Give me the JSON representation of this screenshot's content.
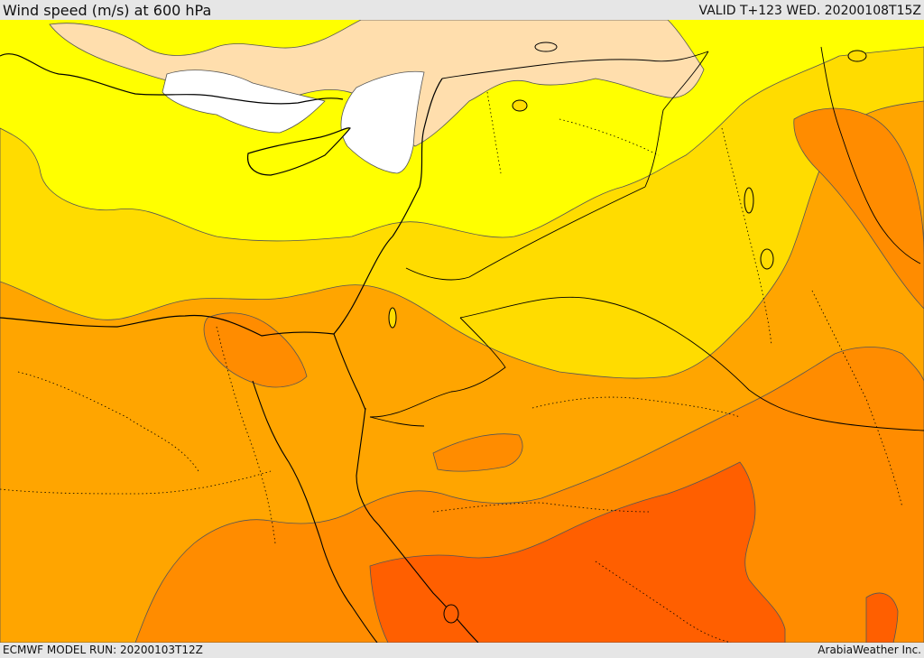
{
  "header": {
    "title": "Wind speed (m/s) at 600 hPa",
    "valid": "VALID T+123 WED. 20200108T15Z"
  },
  "footer": {
    "model_run": "ECMWF MODEL RUN: 20200103T12Z",
    "credit": "ArabiaWeather Inc."
  },
  "colors": {
    "calm": "#ffffff",
    "very_light": "#ffdead",
    "light": "#ffff00",
    "moderate": "#ffdc00",
    "fresh": "#ffa500",
    "strong": "#ff8c00",
    "very_strong": "#ff5f00",
    "coastline": "#000000",
    "contour": "#555555"
  }
}
